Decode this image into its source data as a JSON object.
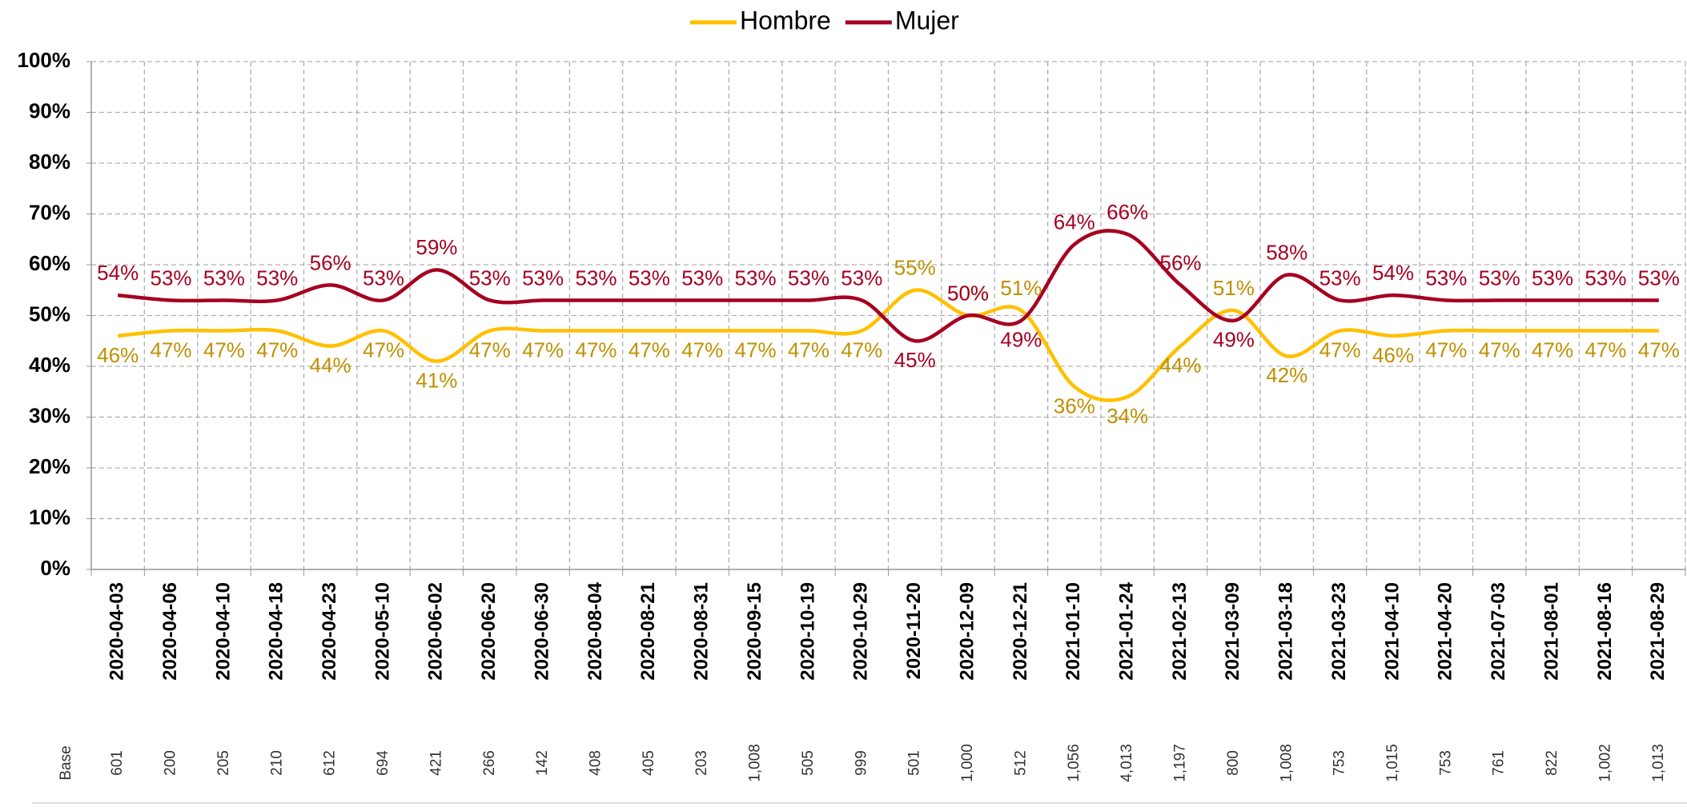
{
  "chart_data": {
    "type": "line",
    "x": [
      "2020-04-03",
      "2020-04-06",
      "2020-04-10",
      "2020-04-18",
      "2020-04-23",
      "2020-05-10",
      "2020-06-02",
      "2020-06-20",
      "2020-06-30",
      "2020-08-04",
      "2020-08-21",
      "2020-08-31",
      "2020-09-15",
      "2020-10-19",
      "2020-10-29",
      "2020-11-20",
      "2020-12-09",
      "2020-12-21",
      "2021-01-10",
      "2021-01-24",
      "2021-02-13",
      "2021-03-09",
      "2021-03-18",
      "2021-03-23",
      "2021-04-10",
      "2021-04-20",
      "2021-07-03",
      "2021-08-01",
      "2021-08-16",
      "2021-08-29"
    ],
    "series": [
      {
        "name": "Hombre",
        "color": "#ffc000",
        "label_color": "#bf9000",
        "values": [
          46,
          47,
          47,
          47,
          44,
          47,
          41,
          47,
          47,
          47,
          47,
          47,
          47,
          47,
          47,
          55,
          50,
          51,
          36,
          34,
          44,
          51,
          42,
          47,
          46,
          47,
          47,
          47,
          47,
          47
        ],
        "value_labels": [
          "46%",
          "47%",
          "47%",
          "47%",
          "44%",
          "47%",
          "41%",
          "47%",
          "47%",
          "47%",
          "47%",
          "47%",
          "47%",
          "47%",
          "47%",
          "55%",
          "50%",
          "51%",
          "36%",
          "34%",
          "44%",
          "51%",
          "42%",
          "47%",
          "46%",
          "47%",
          "47%",
          "47%",
          "47%",
          "47%"
        ]
      },
      {
        "name": "Mujer",
        "color": "#a50021",
        "label_color": "#a50021",
        "values": [
          54,
          53,
          53,
          53,
          56,
          53,
          59,
          53,
          53,
          53,
          53,
          53,
          53,
          53,
          53,
          45,
          50,
          49,
          64,
          66,
          56,
          49,
          58,
          53,
          54,
          53,
          53,
          53,
          53,
          53
        ],
        "value_labels": [
          "54%",
          "53%",
          "53%",
          "53%",
          "56%",
          "53%",
          "59%",
          "53%",
          "53%",
          "53%",
          "53%",
          "53%",
          "53%",
          "53%",
          "53%",
          "45%",
          "50%",
          "49%",
          "64%",
          "66%",
          "56%",
          "49%",
          "58%",
          "53%",
          "54%",
          "53%",
          "53%",
          "53%",
          "53%",
          "53%"
        ]
      }
    ],
    "ylim": [
      0,
      100
    ],
    "yticks": [
      {
        "value": 0,
        "label": "0%"
      },
      {
        "value": 10,
        "label": "10%"
      },
      {
        "value": 20,
        "label": "20%"
      },
      {
        "value": 30,
        "label": "30%"
      },
      {
        "value": 40,
        "label": "40%"
      },
      {
        "value": 50,
        "label": "50%"
      },
      {
        "value": 60,
        "label": "60%"
      },
      {
        "value": 70,
        "label": "70%"
      },
      {
        "value": 80,
        "label": "80%"
      },
      {
        "value": 90,
        "label": "90%"
      },
      {
        "value": 100,
        "label": "100%"
      }
    ],
    "grid": true,
    "legend": "top",
    "base": {
      "label": "Base",
      "values": [
        "601",
        "200",
        "205",
        "210",
        "612",
        "694",
        "421",
        "266",
        "142",
        "408",
        "405",
        "203",
        "1,008",
        "505",
        "999",
        "501",
        "1,000",
        "512",
        "1,056",
        "4,013",
        "1,197",
        "800",
        "1,008",
        "753",
        "1,015",
        "753",
        "761",
        "822",
        "1,002",
        "1,013"
      ]
    }
  }
}
